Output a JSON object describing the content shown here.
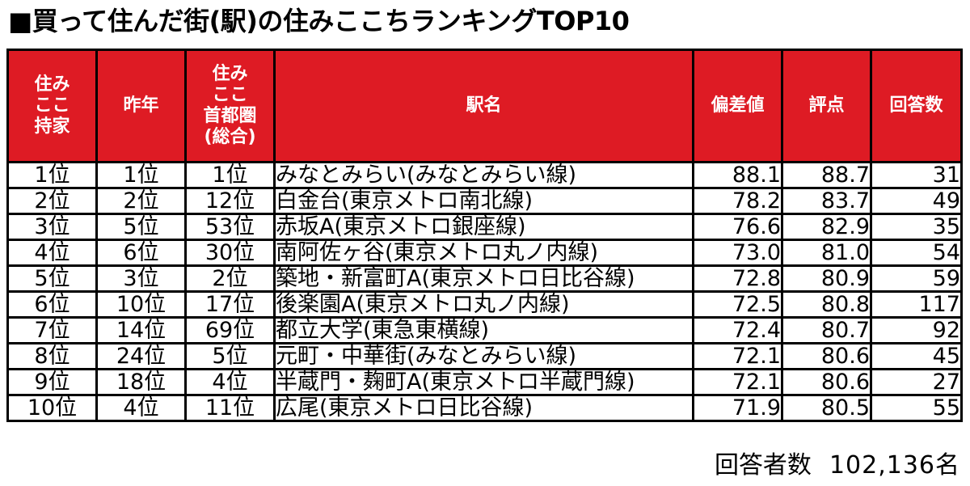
{
  "title": "■買って住んだ街(駅)の住みここちランキングTOP10",
  "headers": {
    "sumikoko_lines": [
      "住み",
      "ここ",
      "持家"
    ],
    "last_year": "昨年",
    "capital_lines": [
      "住み",
      "ここ",
      "首都圏",
      "(総合)"
    ],
    "station": "駅名",
    "deviation": "偏差値",
    "score": "評点",
    "responses": "回答数"
  },
  "rows": [
    {
      "rank": "1位",
      "last_year": "1位",
      "capital": "1位",
      "station": "みなとみらい(みなとみらい線)",
      "deviation": "88.1",
      "score": "88.7",
      "responses": "31"
    },
    {
      "rank": "2位",
      "last_year": "2位",
      "capital": "12位",
      "station": "白金台(東京メトロ南北線)",
      "deviation": "78.2",
      "score": "83.7",
      "responses": "49"
    },
    {
      "rank": "3位",
      "last_year": "5位",
      "capital": "53位",
      "station": "赤坂A(東京メトロ銀座線)",
      "deviation": "76.6",
      "score": "82.9",
      "responses": "35"
    },
    {
      "rank": "4位",
      "last_year": "6位",
      "capital": "30位",
      "station": "南阿佐ヶ谷(東京メトロ丸ノ内線)",
      "deviation": "73.0",
      "score": "81.0",
      "responses": "54"
    },
    {
      "rank": "5位",
      "last_year": "3位",
      "capital": "2位",
      "station": "築地・新富町A(東京メトロ日比谷線)",
      "deviation": "72.8",
      "score": "80.9",
      "responses": "59"
    },
    {
      "rank": "6位",
      "last_year": "10位",
      "capital": "17位",
      "station": "後楽園A(東京メトロ丸ノ内線)",
      "deviation": "72.5",
      "score": "80.8",
      "responses": "117"
    },
    {
      "rank": "7位",
      "last_year": "14位",
      "capital": "69位",
      "station": "都立大学(東急東横線)",
      "deviation": "72.4",
      "score": "80.7",
      "responses": "92"
    },
    {
      "rank": "8位",
      "last_year": "24位",
      "capital": "5位",
      "station": "元町・中華街(みなとみらい線)",
      "deviation": "72.1",
      "score": "80.6",
      "responses": "45"
    },
    {
      "rank": "9位",
      "last_year": "18位",
      "capital": "4位",
      "station": "半蔵門・麹町A(東京メトロ半蔵門線)",
      "deviation": "72.1",
      "score": "80.6",
      "responses": "27"
    },
    {
      "rank": "10位",
      "last_year": "4位",
      "capital": "11位",
      "station": "広尾(東京メトロ日比谷線)",
      "deviation": "71.9",
      "score": "80.5",
      "responses": "55"
    }
  ],
  "footer": {
    "label": "回答者数",
    "count": "102,136名"
  },
  "colors": {
    "header_bg": "#de1b24",
    "header_text": "#ffffff"
  }
}
